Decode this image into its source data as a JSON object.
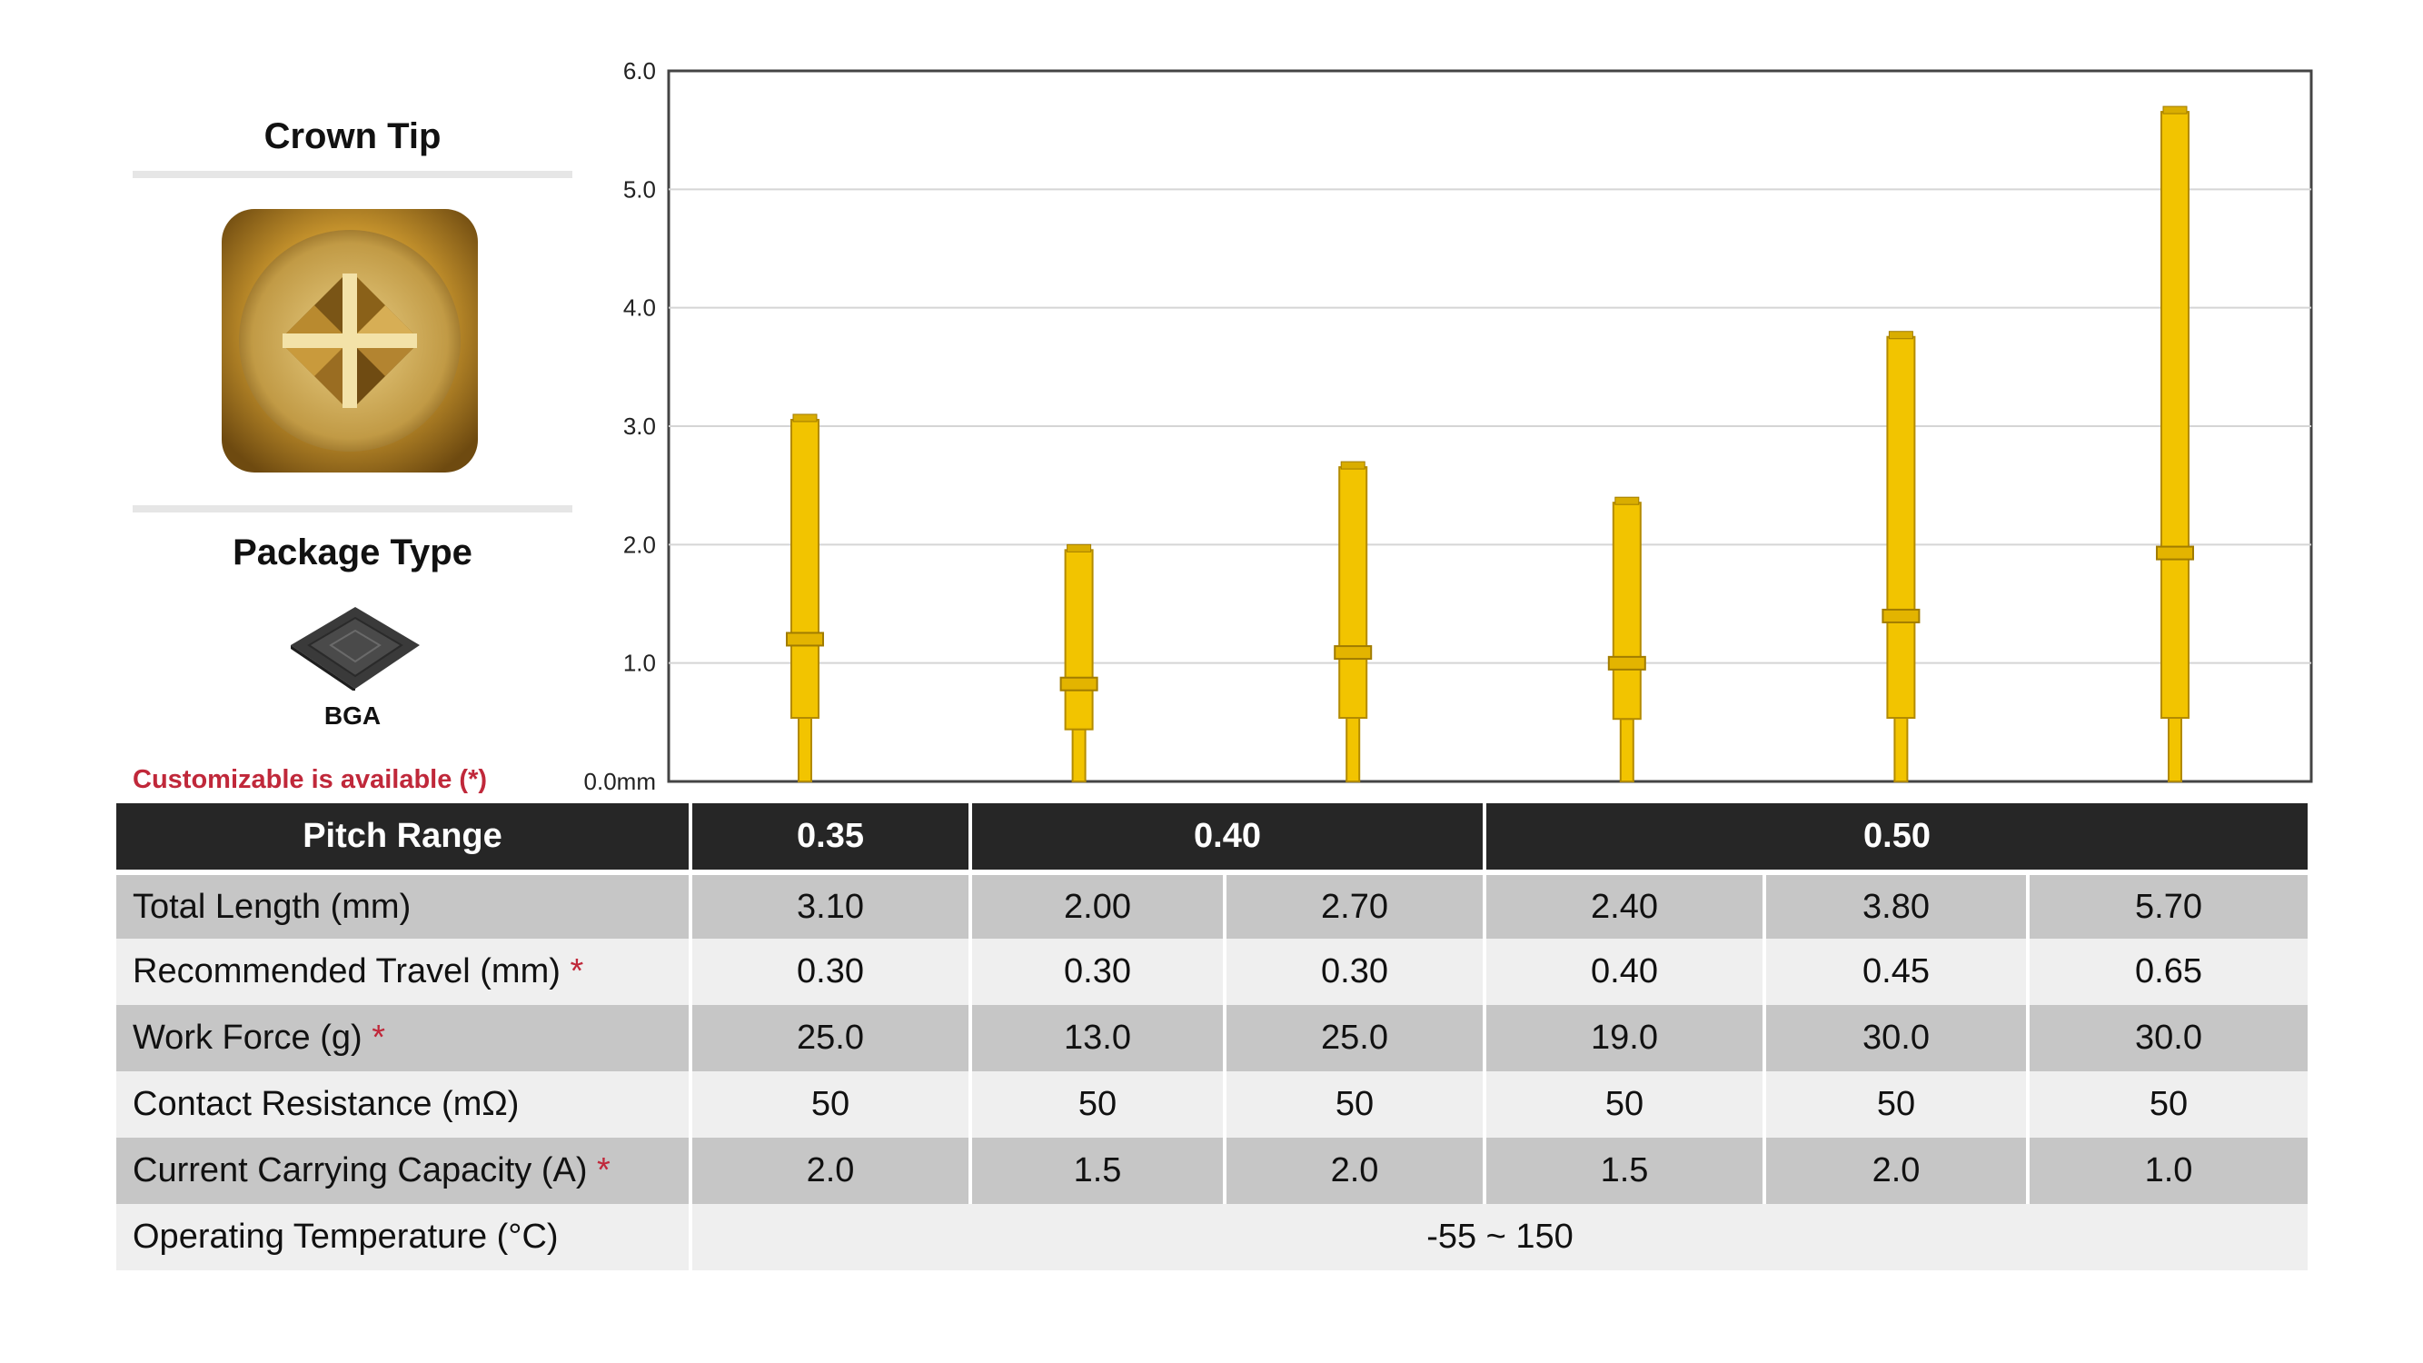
{
  "left_panel": {
    "crown_title": "Crown Tip",
    "package_title": "Package Type",
    "package_label": "BGA",
    "custom_note": "Customizable is available (*)"
  },
  "chart_data": {
    "type": "bar",
    "categories": [
      "3.10",
      "2.00",
      "2.70",
      "2.40",
      "3.80",
      "5.70"
    ],
    "values": [
      3.1,
      2.0,
      2.7,
      2.4,
      3.8,
      5.7
    ],
    "title": "",
    "xlabel": "",
    "ylabel": "",
    "ylim": [
      0,
      6.0
    ],
    "y_ticks": [
      "0.0mm",
      "1.0",
      "2.0",
      "3.0",
      "4.0",
      "5.0",
      "6.0"
    ],
    "grid": true,
    "bar_color": "#f2c400"
  },
  "table": {
    "header": {
      "label": "Pitch Range",
      "groups": [
        "0.35",
        "0.40",
        "0.50"
      ]
    },
    "rows": [
      {
        "label": "Total Length (mm)",
        "star": "",
        "values": [
          "3.10",
          "2.00",
          "2.70",
          "2.40",
          "3.80",
          "5.70"
        ]
      },
      {
        "label": "Recommended Travel (mm) ",
        "star": "*",
        "values": [
          "0.30",
          "0.30",
          "0.30",
          "0.40",
          "0.45",
          "0.65"
        ]
      },
      {
        "label": "Work Force (g) ",
        "star": "*",
        "values": [
          "25.0",
          "13.0",
          "25.0",
          "19.0",
          "30.0",
          "30.0"
        ]
      },
      {
        "label": "Contact Resistance (mΩ)",
        "star": "",
        "values": [
          "50",
          "50",
          "50",
          "50",
          "50",
          "50"
        ]
      },
      {
        "label": "Current Carrying Capacity (A) ",
        "star": "*",
        "values": [
          "2.0",
          "1.5",
          "2.0",
          "1.5",
          "2.0",
          "1.0"
        ]
      }
    ],
    "temperature": {
      "label": "Operating Temperature (°C)",
      "value": "-55 ~ 150"
    }
  }
}
